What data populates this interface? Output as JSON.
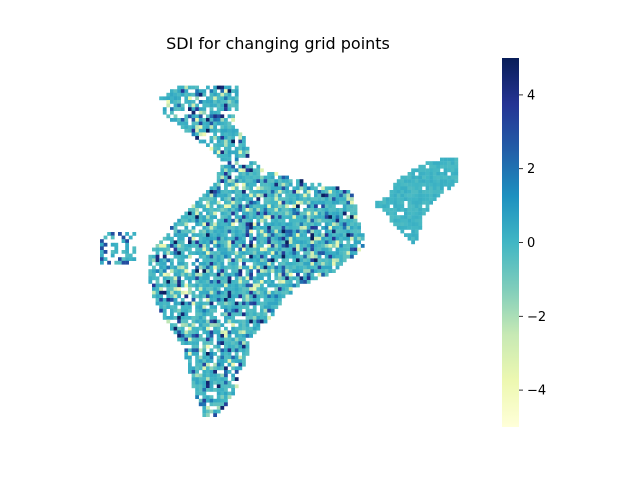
{
  "chart_data": {
    "type": "heatmap",
    "title": "SDI for changing grid points",
    "xlabel": "",
    "ylabel": "",
    "colorbar": {
      "min": -5,
      "max": 5,
      "ticks": [
        4,
        2,
        0,
        -2,
        -4
      ],
      "tick_labels": [
        "4",
        "2",
        "0",
        "−2",
        "−4"
      ],
      "colormap": "YlGnBu",
      "colors": [
        "#ffffd9",
        "#edf8b1",
        "#c7e9b4",
        "#7fcdbb",
        "#41b6c4",
        "#1d91c0",
        "#225ea8",
        "#253494",
        "#081d58"
      ]
    },
    "grid": false,
    "axes_visible": false,
    "region": "India gridded map",
    "typical_value": 0,
    "value_range": [
      -5,
      5
    ]
  }
}
